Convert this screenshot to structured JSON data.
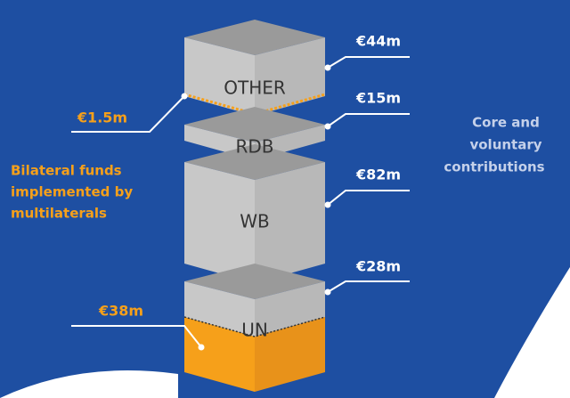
{
  "blocks": [
    {
      "label": "OTHER",
      "value": "€44m"
    },
    {
      "label": "RDB",
      "value": "€15m"
    },
    {
      "label": "WB",
      "value": "€82m"
    },
    {
      "label": "UN",
      "value": "€28m"
    }
  ],
  "bilateral": {
    "values": [
      "€1.5m",
      "€38m"
    ],
    "label": [
      "Bilateral funds",
      "implemented by",
      "multilaterals"
    ]
  },
  "core": {
    "label": [
      "Core and",
      "voluntary",
      "contributions"
    ]
  }
}
